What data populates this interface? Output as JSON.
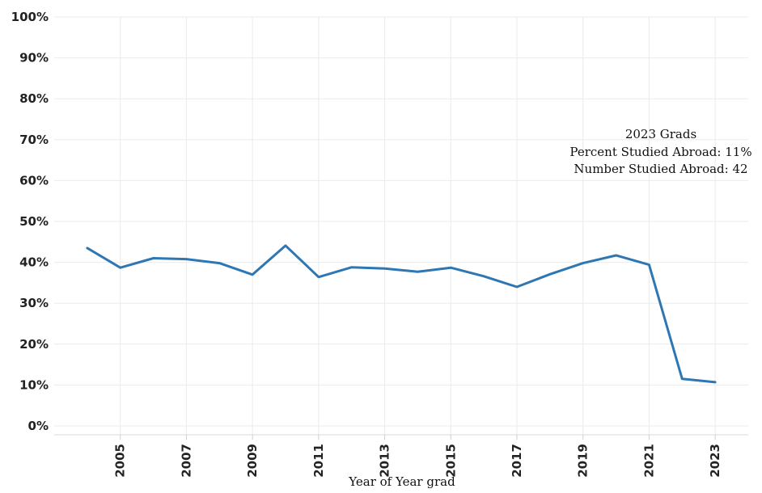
{
  "chart_data": {
    "type": "line",
    "title": "",
    "xlabel": "Year of Year grad",
    "ylabel": "",
    "x": [
      2004,
      2005,
      2006,
      2007,
      2008,
      2009,
      2010,
      2011,
      2012,
      2013,
      2014,
      2015,
      2016,
      2017,
      2018,
      2019,
      2020,
      2021,
      2022,
      2023
    ],
    "series": [
      {
        "values": [
          43.5,
          38.7,
          41.0,
          40.8,
          39.8,
          37.0,
          44.1,
          36.4,
          38.8,
          38.5,
          37.7,
          38.7,
          36.6,
          34.0,
          37.1,
          39.8,
          41.7,
          39.4,
          11.5,
          10.7
        ],
        "color": "#2e77b2"
      }
    ],
    "ylim": [
      0,
      100
    ],
    "xlim": [
      2003.0,
      2024.0
    ],
    "x_tick_labels": [
      "2005",
      "2007",
      "2009",
      "2011",
      "2013",
      "2015",
      "2017",
      "2019",
      "2021",
      "2023"
    ],
    "y_tick_labels": [
      "0%",
      "10%",
      "20%",
      "30%",
      "40%",
      "50%",
      "60%",
      "70%",
      "80%",
      "90%",
      "100%"
    ],
    "annotation": {
      "lines": [
        "2023 Grads",
        "Percent Studied Abroad: 11%",
        "Number Studied Abroad: 42"
      ]
    },
    "grid": true,
    "line_color": "#2e77b2",
    "grid_color": "#ebebeb"
  }
}
